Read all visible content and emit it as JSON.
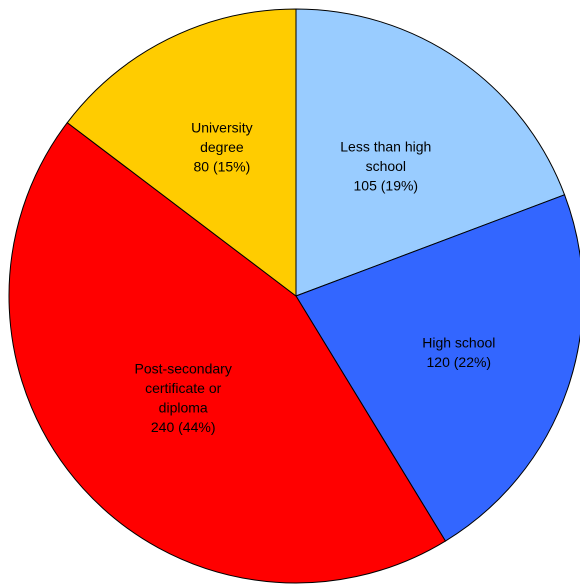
{
  "chart_data": {
    "type": "pie",
    "slices": [
      {
        "lines": [
          "Less than high",
          "school",
          "105 (19%)"
        ],
        "value": 105,
        "percent": 19,
        "color": "#99ccff"
      },
      {
        "lines": [
          "High school",
          "120 (22%)"
        ],
        "value": 120,
        "percent": 22,
        "color": "#3366ff"
      },
      {
        "lines": [
          "Post-secondary",
          "certificate or",
          "diploma",
          "240 (44%)"
        ],
        "value": 240,
        "percent": 44,
        "color": "#ff0000"
      },
      {
        "lines": [
          "University",
          "degree",
          "80 (15%)"
        ],
        "value": 80,
        "percent": 15,
        "color": "#ffcc00"
      }
    ]
  }
}
